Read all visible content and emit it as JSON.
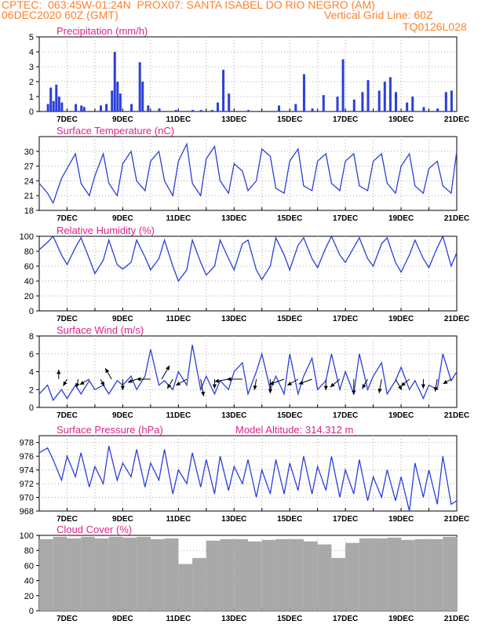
{
  "header": {
    "line1": "CPTEC:  063:45W-01:24N  PROX07: SANTA ISABEL DO RIO NEGRO (AM)",
    "date": "06DEC2020 60Z (GMT)",
    "grid_note": "Vertical Grid Line: 60Z",
    "code": "TQ0126L028"
  },
  "colors": {
    "header": "#ff7f2a",
    "title": "#e0218a",
    "line": "#2b3fd8",
    "bar": "#2b3fd8",
    "cloud": "#a9a9a9",
    "grid": "#aaaaaa"
  },
  "chart_data": [
    {
      "type": "bar",
      "title": "Precipitation (mm/h)",
      "ylim": [
        0,
        5
      ],
      "yticks": [
        0,
        1,
        2,
        3,
        4,
        5
      ],
      "xticks": [
        "7DEC",
        "9DEC",
        "11DEC",
        "13DEC",
        "15DEC",
        "17DEC",
        "19DEC",
        "21DEC"
      ],
      "x": [
        6.3,
        6.4,
        6.5,
        6.6,
        6.7,
        6.8,
        7.3,
        7.5,
        7.6,
        8.2,
        8.4,
        8.6,
        8.7,
        8.8,
        8.9,
        9.3,
        9.6,
        9.7,
        9.9,
        10.3,
        10.9,
        11.5,
        11.8,
        12.2,
        12.4,
        12.6,
        12.8,
        13.5,
        14.6,
        15.2,
        15.5,
        15.8,
        16.2,
        16.7,
        16.9,
        17.3,
        17.6,
        17.8,
        18.2,
        18.4,
        18.6,
        18.8,
        19.2,
        19.4,
        19.8,
        20.3,
        20.6,
        20.8
      ],
      "values": [
        0.5,
        1.6,
        0.7,
        1.8,
        1.0,
        0.6,
        0.5,
        0.4,
        0.3,
        0.4,
        0.5,
        1.4,
        4.0,
        2.0,
        1.2,
        0.5,
        3.3,
        2.0,
        0.4,
        0.2,
        0.1,
        0.1,
        0.1,
        0.1,
        0.6,
        2.8,
        1.2,
        0.1,
        0.4,
        0.5,
        2.5,
        0.2,
        1.1,
        1.0,
        3.5,
        0.8,
        1.3,
        2.1,
        1.4,
        2.0,
        2.3,
        1.3,
        0.6,
        1.0,
        0.3,
        0.2,
        1.3,
        1.4
      ]
    },
    {
      "type": "line",
      "title": "Surface Temperature (nC)",
      "ylim": [
        18,
        33
      ],
      "yticks": [
        18,
        21,
        24,
        27,
        30
      ],
      "xticks": [
        "7DEC",
        "9DEC",
        "11DEC",
        "13DEC",
        "15DEC",
        "17DEC",
        "19DEC",
        "21DEC"
      ],
      "x": [
        6.0,
        6.3,
        6.5,
        6.8,
        7.0,
        7.3,
        7.5,
        7.8,
        8.0,
        8.3,
        8.5,
        8.8,
        9.0,
        9.3,
        9.5,
        9.8,
        10.0,
        10.3,
        10.5,
        10.8,
        11.0,
        11.3,
        11.5,
        11.8,
        12.0,
        12.3,
        12.5,
        12.8,
        13.0,
        13.3,
        13.5,
        13.8,
        14.0,
        14.3,
        14.5,
        14.8,
        15.0,
        15.3,
        15.5,
        15.8,
        16.0,
        16.3,
        16.5,
        16.8,
        17.0,
        17.3,
        17.5,
        17.8,
        18.0,
        18.3,
        18.5,
        18.8,
        19.0,
        19.3,
        19.5,
        19.8,
        20.0,
        20.3,
        20.5,
        20.8,
        21.0
      ],
      "values": [
        23.5,
        21.5,
        19.5,
        24.5,
        26.5,
        29.5,
        23.5,
        21.0,
        25.0,
        29.5,
        23.5,
        21.0,
        27.5,
        30.0,
        24.0,
        22.0,
        28.0,
        30.0,
        24.0,
        21.0,
        28.0,
        31.5,
        23.5,
        21.0,
        28.5,
        31.0,
        24.0,
        21.5,
        27.5,
        26.0,
        22.0,
        24.0,
        30.5,
        29.0,
        22.5,
        21.5,
        28.0,
        30.5,
        23.0,
        22.0,
        28.0,
        29.5,
        23.5,
        22.0,
        28.0,
        29.5,
        23.0,
        22.0,
        28.0,
        29.5,
        23.5,
        21.5,
        27.0,
        29.5,
        23.0,
        21.5,
        26.5,
        28.0,
        23.0,
        21.5,
        30.0
      ]
    },
    {
      "type": "line",
      "title": "Relative Humidity (%)",
      "ylim": [
        0,
        100
      ],
      "yticks": [
        0,
        20,
        40,
        60,
        80,
        100
      ],
      "xticks": [
        "7DEC",
        "9DEC",
        "11DEC",
        "13DEC",
        "15DEC",
        "17DEC",
        "19DEC",
        "21DEC"
      ],
      "x": [
        6.0,
        6.3,
        6.5,
        6.8,
        7.0,
        7.3,
        7.5,
        7.8,
        8.0,
        8.3,
        8.5,
        8.8,
        9.0,
        9.3,
        9.5,
        9.8,
        10.0,
        10.3,
        10.5,
        10.8,
        11.0,
        11.3,
        11.5,
        11.8,
        12.0,
        12.3,
        12.5,
        12.8,
        13.0,
        13.3,
        13.5,
        13.8,
        14.0,
        14.3,
        14.5,
        14.8,
        15.0,
        15.3,
        15.5,
        15.8,
        16.0,
        16.3,
        16.5,
        16.8,
        17.0,
        17.3,
        17.5,
        17.8,
        18.0,
        18.3,
        18.5,
        18.8,
        19.0,
        19.3,
        19.5,
        19.8,
        20.0,
        20.3,
        20.5,
        20.8,
        21.0
      ],
      "values": [
        82,
        92,
        100,
        75,
        62,
        85,
        98,
        70,
        50,
        68,
        95,
        62,
        56,
        65,
        95,
        72,
        55,
        70,
        95,
        60,
        40,
        55,
        95,
        65,
        48,
        60,
        95,
        70,
        55,
        90,
        95,
        55,
        42,
        60,
        98,
        75,
        55,
        88,
        98,
        70,
        58,
        85,
        100,
        75,
        65,
        85,
        98,
        70,
        60,
        90,
        98,
        65,
        52,
        75,
        95,
        70,
        58,
        85,
        100,
        60,
        78
      ]
    },
    {
      "type": "line",
      "title": "Surface Wind (m/s)",
      "ylim": [
        0,
        8
      ],
      "yticks": [
        0,
        2,
        4,
        6,
        8
      ],
      "xticks": [
        "7DEC",
        "9DEC",
        "11DEC",
        "13DEC",
        "15DEC",
        "17DEC",
        "19DEC",
        "21DEC"
      ],
      "x": [
        6.0,
        6.3,
        6.5,
        6.8,
        7.0,
        7.3,
        7.5,
        7.8,
        8.0,
        8.3,
        8.5,
        8.8,
        9.0,
        9.3,
        9.5,
        9.8,
        10.0,
        10.3,
        10.5,
        10.8,
        11.0,
        11.3,
        11.5,
        11.8,
        12.0,
        12.3,
        12.5,
        12.8,
        13.0,
        13.3,
        13.5,
        13.8,
        14.0,
        14.3,
        14.5,
        14.8,
        15.0,
        15.3,
        15.5,
        15.8,
        16.0,
        16.3,
        16.5,
        16.8,
        17.0,
        17.3,
        17.5,
        17.8,
        18.0,
        18.3,
        18.5,
        18.8,
        19.0,
        19.3,
        19.5,
        19.8,
        20.0,
        20.3,
        20.5,
        20.8,
        21.0
      ],
      "values": [
        1.5,
        2.5,
        0.8,
        2.0,
        1.0,
        2.5,
        1.5,
        3.0,
        2.0,
        2.5,
        1.5,
        3.0,
        2.5,
        3.5,
        2.0,
        3.5,
        6.5,
        2.5,
        3.0,
        2.0,
        4.0,
        2.5,
        7.0,
        2.0,
        3.5,
        1.5,
        3.0,
        2.0,
        4.0,
        5.0,
        1.5,
        4.0,
        6.0,
        2.0,
        3.5,
        1.5,
        6.0,
        1.5,
        3.5,
        5.5,
        2.0,
        3.0,
        6.0,
        2.0,
        4.0,
        1.5,
        6.0,
        2.0,
        3.5,
        5.0,
        1.5,
        3.0,
        4.5,
        2.0,
        3.0,
        1.0,
        2.5,
        2.0,
        6.0,
        3.0,
        4.0
      ],
      "vectors": {
        "x": [
          6.7,
          7.0,
          7.4,
          7.8,
          8.2,
          8.6,
          9.0,
          9.5,
          10.0,
          10.4,
          10.8,
          11.3,
          11.8,
          12.3,
          12.8,
          13.3,
          13.8,
          14.3,
          14.8,
          15.3,
          15.8,
          16.3,
          16.8,
          17.3,
          17.8,
          18.3,
          18.8,
          19.3,
          19.8,
          20.3,
          20.8
        ],
        "angle_deg": [
          90,
          -120,
          -100,
          -150,
          -60,
          120,
          -90,
          -160,
          -180,
          60,
          -120,
          -150,
          -80,
          -90,
          -170,
          -180,
          -100,
          -90,
          -160,
          -150,
          -160,
          -90,
          -140,
          -90,
          -120,
          -100,
          -60,
          -140,
          -90,
          -100,
          -150
        ],
        "len": [
          12,
          10,
          11,
          14,
          10,
          16,
          14,
          12,
          18,
          20,
          14,
          16,
          22,
          12,
          18,
          20,
          14,
          18,
          20,
          16,
          18,
          14,
          16,
          20,
          14,
          18,
          16,
          14,
          12,
          16,
          12
        ]
      }
    },
    {
      "type": "line",
      "title": "Surface Pressure (hPa)",
      "subtitle": "Model Altitude: 314.312 m",
      "ylim": [
        968,
        979
      ],
      "yticks": [
        968,
        970,
        972,
        974,
        976,
        978
      ],
      "xticks": [
        "7DEC",
        "9DEC",
        "11DEC",
        "13DEC",
        "15DEC",
        "17DEC",
        "19DEC",
        "21DEC"
      ],
      "x": [
        6.0,
        6.3,
        6.5,
        6.8,
        7.0,
        7.3,
        7.5,
        7.8,
        8.0,
        8.3,
        8.5,
        8.8,
        9.0,
        9.3,
        9.5,
        9.8,
        10.0,
        10.3,
        10.5,
        10.8,
        11.0,
        11.3,
        11.5,
        11.8,
        12.0,
        12.3,
        12.5,
        12.8,
        13.0,
        13.3,
        13.5,
        13.8,
        14.0,
        14.3,
        14.5,
        14.8,
        15.0,
        15.3,
        15.5,
        15.8,
        16.0,
        16.3,
        16.5,
        16.8,
        17.0,
        17.3,
        17.5,
        17.8,
        18.0,
        18.3,
        18.5,
        18.8,
        19.0,
        19.3,
        19.5,
        19.8,
        20.0,
        20.3,
        20.5,
        20.8,
        21.0
      ],
      "values": [
        976.5,
        977.2,
        975.5,
        972.5,
        976.0,
        973.0,
        976.5,
        971.5,
        974.5,
        972.0,
        977.5,
        972.5,
        975.0,
        973.0,
        977.0,
        971.5,
        975.0,
        972.5,
        977.0,
        970.5,
        974.0,
        972.0,
        976.5,
        971.5,
        975.5,
        970.5,
        976.0,
        971.0,
        974.5,
        972.0,
        975.5,
        970.0,
        974.0,
        970.5,
        975.5,
        970.5,
        975.0,
        971.0,
        976.0,
        970.5,
        974.5,
        971.0,
        976.0,
        970.0,
        974.0,
        970.5,
        975.5,
        969.5,
        973.0,
        970.0,
        974.0,
        969.5,
        973.0,
        968.0,
        975.0,
        970.0,
        974.0,
        969.0,
        976.0,
        969.0,
        969.5
      ]
    },
    {
      "type": "bar",
      "title": "Cloud Cover (%)",
      "ylim": [
        0,
        100
      ],
      "yticks": [
        0,
        20,
        40,
        60,
        80,
        100
      ],
      "xticks": [
        "7DEC",
        "9DEC",
        "11DEC",
        "13DEC",
        "15DEC",
        "17DEC",
        "19DEC",
        "21DEC"
      ],
      "x": [
        6.0,
        6.5,
        7.0,
        7.5,
        8.0,
        8.5,
        9.0,
        9.5,
        10.0,
        10.5,
        11.0,
        11.5,
        12.0,
        12.5,
        13.0,
        13.5,
        14.0,
        14.5,
        15.0,
        15.5,
        16.0,
        16.5,
        17.0,
        17.5,
        18.0,
        18.5,
        19.0,
        19.5,
        20.0,
        20.5,
        21.0
      ],
      "values": [
        95,
        98,
        96,
        98,
        96,
        98,
        97,
        98,
        95,
        96,
        62,
        70,
        93,
        95,
        95,
        92,
        94,
        95,
        95,
        92,
        88,
        70,
        90,
        96,
        96,
        97,
        94,
        95,
        95,
        98,
        98
      ]
    }
  ]
}
